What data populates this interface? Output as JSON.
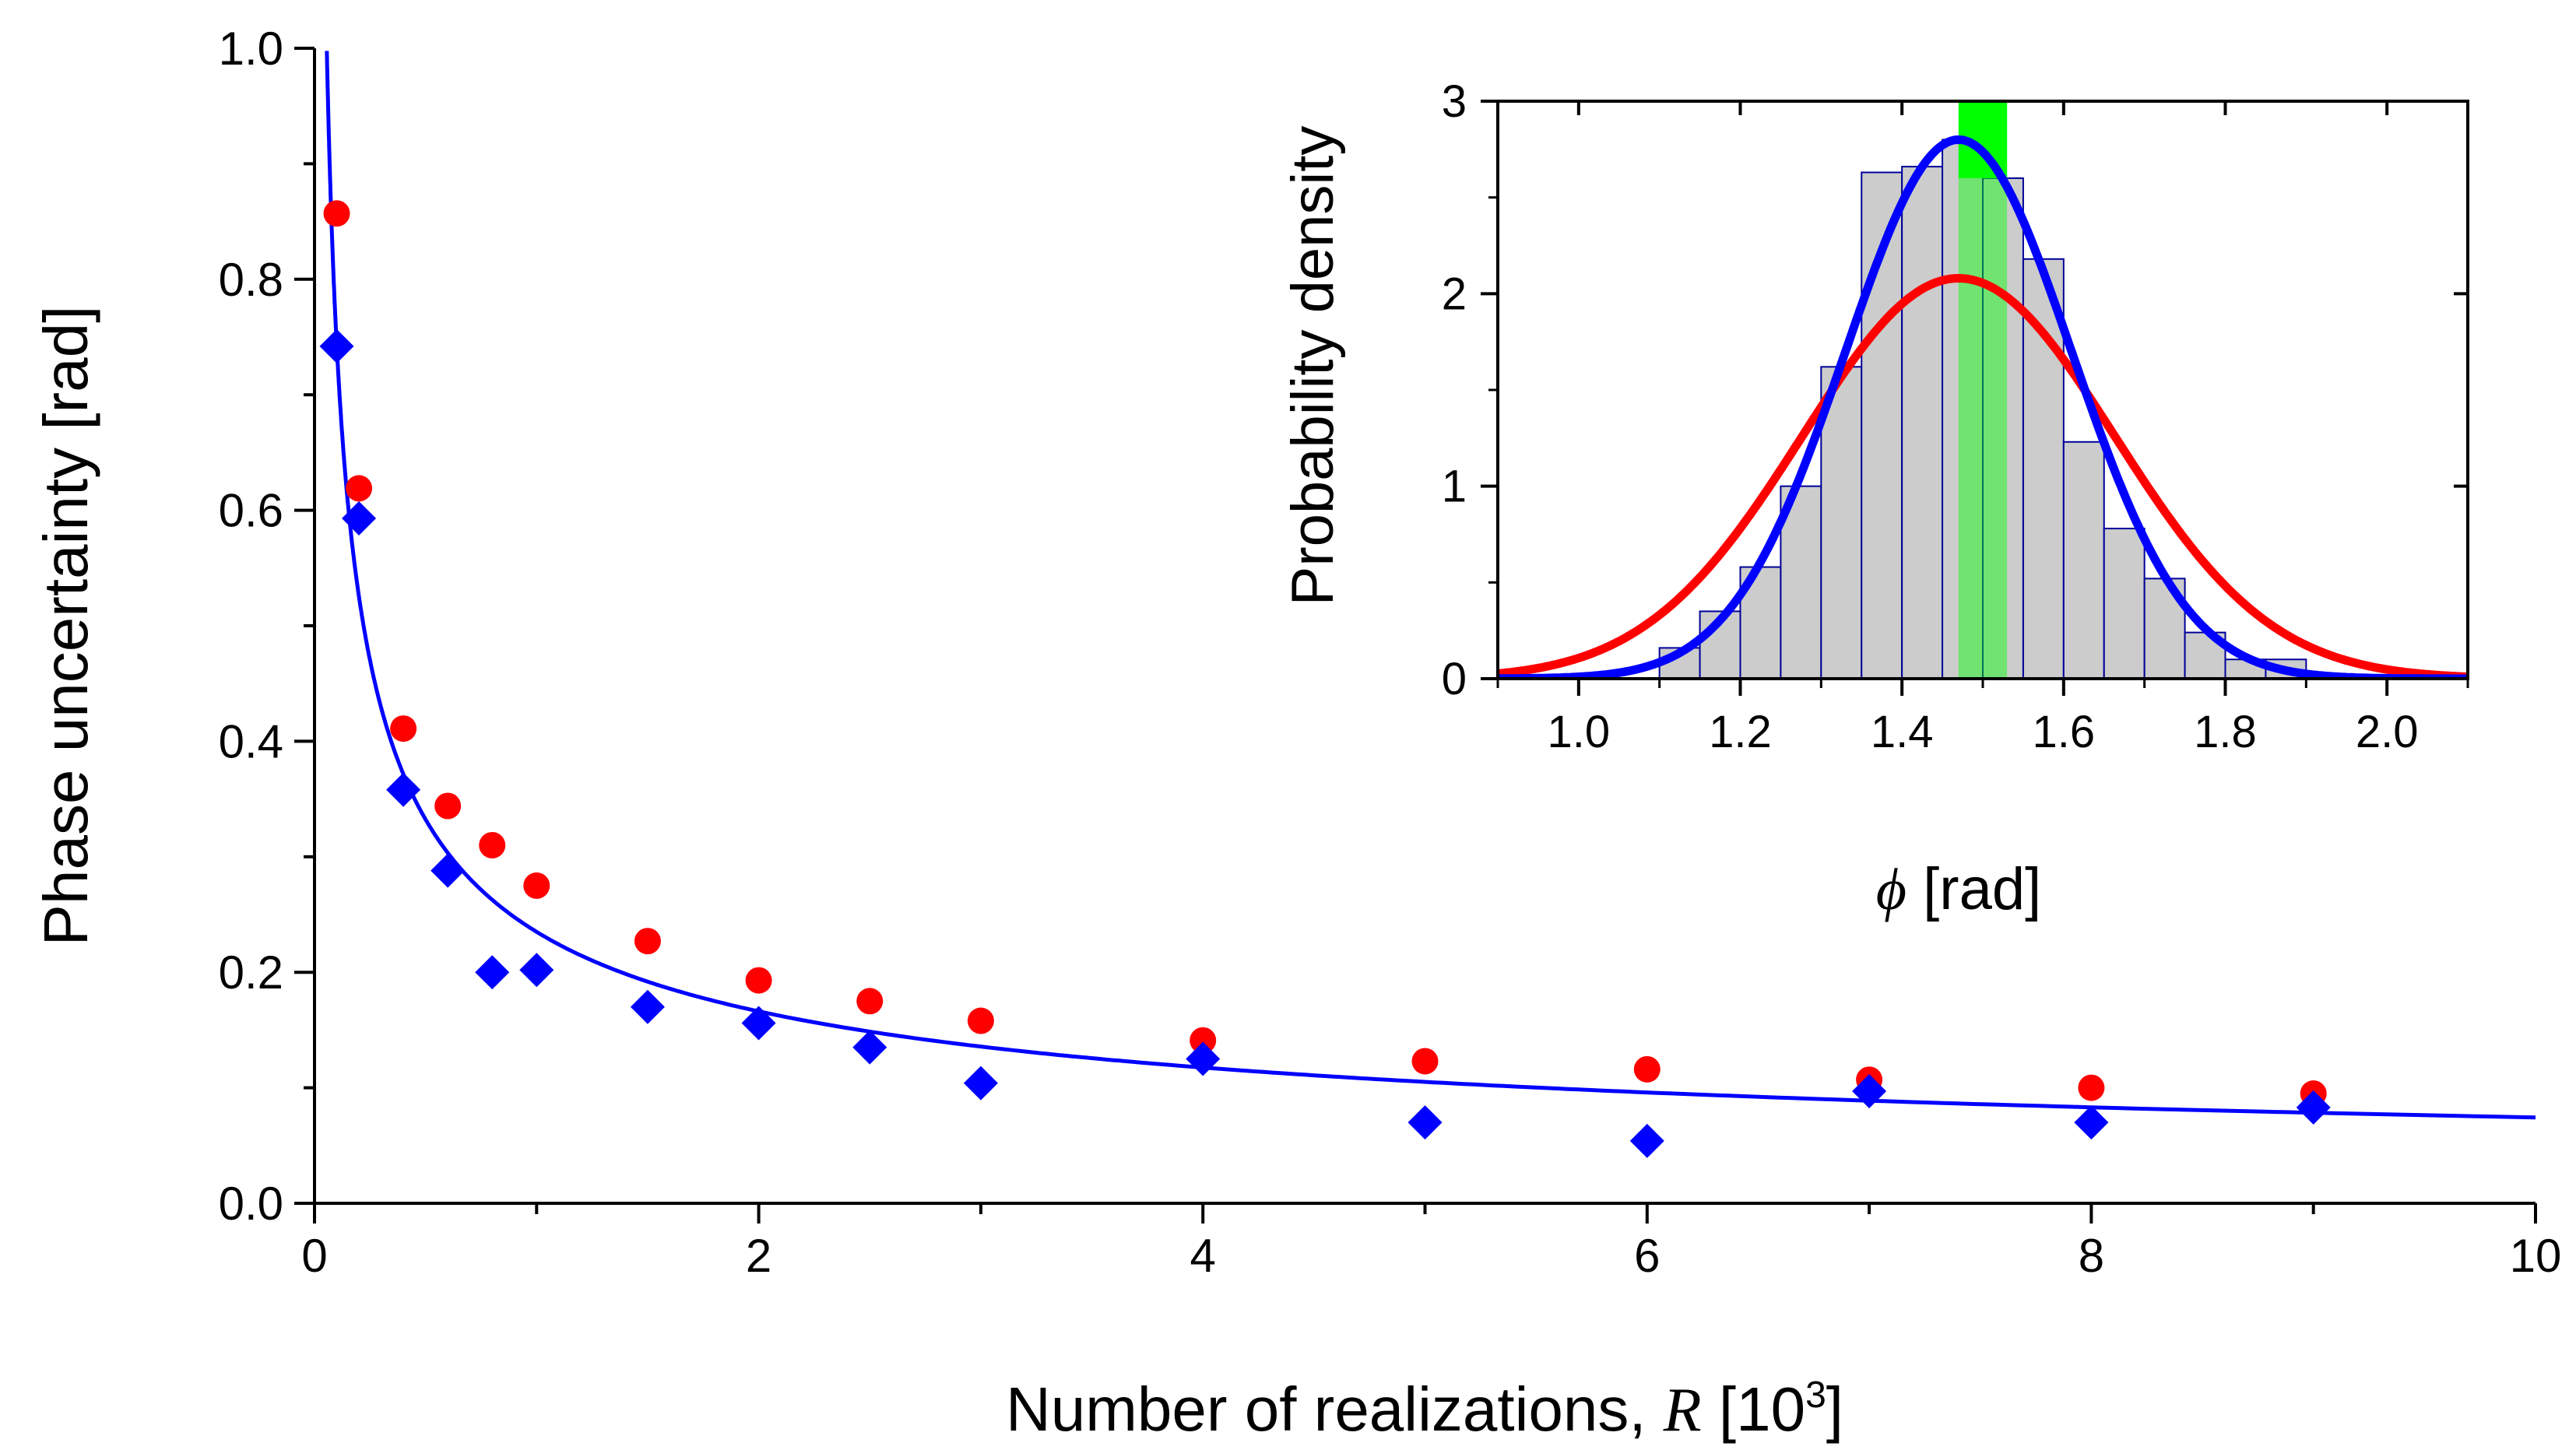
{
  "chart_data": [
    {
      "type": "scatter",
      "title": "",
      "xlabel_main": "Number of realizations, ",
      "xlabel_var": "R",
      "xlabel_unit_open": " [10",
      "xlabel_unit_exp": "3",
      "xlabel_unit_close": "]",
      "ylabel": "Phase uncertainty [rad]",
      "xlim": [
        0,
        10
      ],
      "ylim": [
        0,
        1
      ],
      "x_ticks": [
        0,
        2,
        4,
        6,
        8,
        10
      ],
      "x_tick_labels": [
        "0",
        "2",
        "4",
        "6",
        "8",
        "10"
      ],
      "y_ticks": [
        0,
        0.2,
        0.4,
        0.6,
        0.8,
        1.0
      ],
      "y_tick_labels": [
        "0.0",
        "0.2",
        "0.4",
        "0.6",
        "0.8",
        "1.0"
      ],
      "series": [
        {
          "name": "red circles",
          "marker": "circle",
          "color": "#ff0000",
          "x": [
            0.1,
            0.2,
            0.4,
            0.6,
            0.8,
            1.0,
            1.5,
            2.0,
            2.5,
            3.0,
            4.0,
            5.0,
            6.0,
            7.0,
            8.0,
            9.0
          ],
          "y": [
            0.857,
            0.619,
            0.411,
            0.344,
            0.31,
            0.275,
            0.227,
            0.193,
            0.175,
            0.158,
            0.141,
            0.123,
            0.116,
            0.107,
            0.1,
            0.095
          ]
        },
        {
          "name": "blue diamonds",
          "marker": "diamond",
          "color": "#0000ff",
          "x": [
            0.1,
            0.2,
            0.4,
            0.6,
            0.8,
            1.0,
            1.5,
            2.0,
            2.5,
            3.0,
            4.0,
            5.0,
            6.0,
            7.0,
            8.0,
            9.0
          ],
          "y": [
            0.742,
            0.593,
            0.358,
            0.288,
            0.2,
            0.202,
            0.17,
            0.156,
            0.135,
            0.104,
            0.125,
            0.07,
            0.054,
            0.097,
            0.07,
            0.083
          ]
        },
        {
          "name": "fit",
          "type": "line",
          "color": "#0000ff",
          "formula": "y = 0.235 / sqrt(x)",
          "x_range": [
            0.055,
            10
          ]
        }
      ]
    },
    {
      "type": "histogram",
      "title": "",
      "xlabel_var": "ϕ",
      "xlabel_unit": " [rad]",
      "ylabel": "Probability density",
      "xlim": [
        0.9,
        2.1
      ],
      "ylim": [
        0,
        3
      ],
      "x_ticks": [
        1.0,
        1.2,
        1.4,
        1.6,
        1.8,
        2.0
      ],
      "x_tick_labels": [
        "1.0",
        "1.2",
        "1.4",
        "1.6",
        "1.8",
        "2.0"
      ],
      "y_ticks": [
        0,
        1,
        2,
        3
      ],
      "y_tick_labels": [
        "0",
        "1",
        "2",
        "3"
      ],
      "bin_edges": [
        1.1,
        1.15,
        1.2,
        1.25,
        1.3,
        1.35,
        1.4,
        1.45,
        1.5,
        1.55,
        1.6,
        1.65,
        1.7,
        1.75,
        1.8,
        1.85,
        1.9
      ],
      "bin_heights": [
        0.16,
        0.35,
        0.58,
        1.0,
        1.62,
        2.63,
        2.66,
        2.8,
        2.6,
        2.18,
        1.23,
        0.78,
        0.52,
        0.24,
        0.1,
        0.1
      ],
      "bar_fill": "#cccccc",
      "bar_edge": "#000099",
      "highlight_band": {
        "x0": 1.47,
        "x1": 1.53,
        "color": "#00ff00",
        "opacity": 0.45
      },
      "series": [
        {
          "name": "red gaussian",
          "type": "line",
          "color": "#ff0000",
          "mean": 1.47,
          "peak": 2.08,
          "sigma": 0.193
        },
        {
          "name": "blue gaussian",
          "type": "line",
          "color": "#0000ff",
          "mean": 1.47,
          "peak": 2.8,
          "sigma": 0.14
        }
      ]
    }
  ]
}
